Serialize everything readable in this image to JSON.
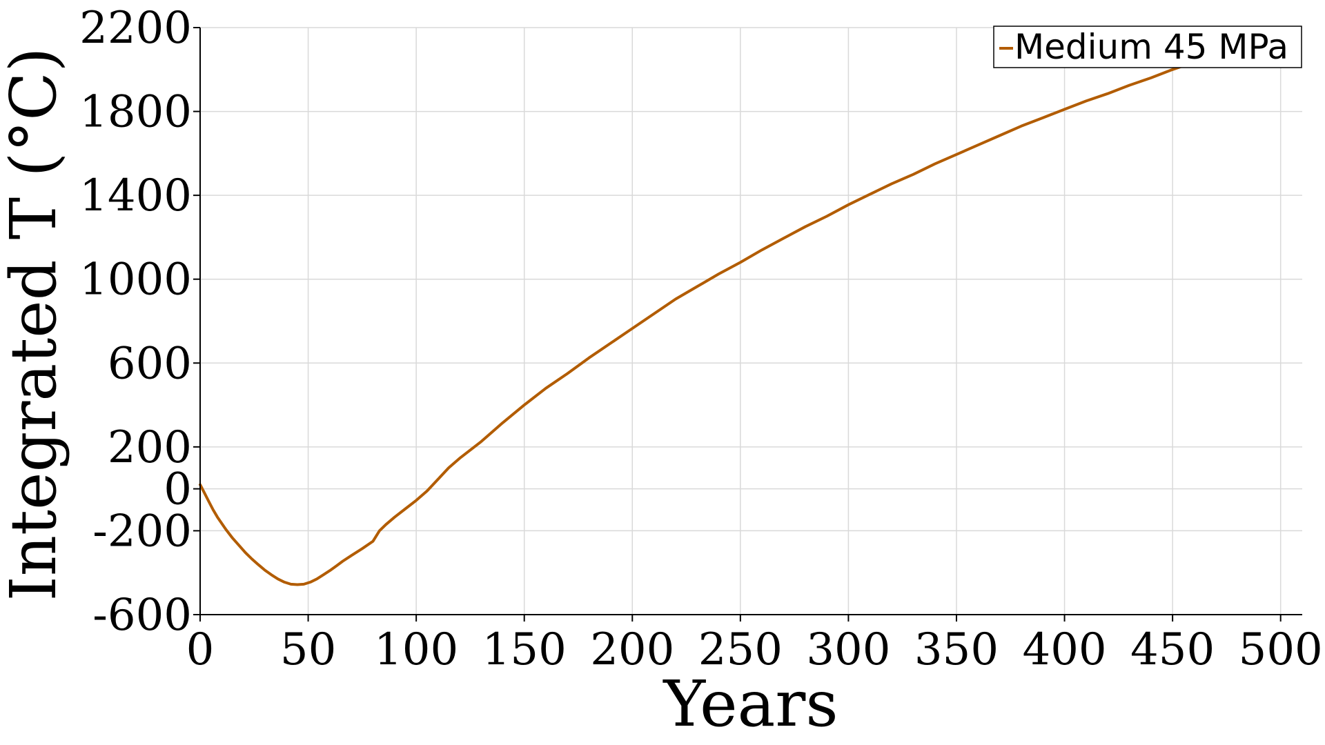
{
  "chart_data": {
    "type": "line",
    "xlabel": "Years",
    "ylabel": "Integrated T (°C)",
    "xlim": [
      0,
      510
    ],
    "ylim": [
      -600,
      2200
    ],
    "xticks": [
      0,
      50,
      100,
      150,
      200,
      250,
      300,
      350,
      400,
      450,
      500
    ],
    "yticks": [
      -600,
      -200,
      0,
      200,
      600,
      1000,
      1400,
      1800,
      2200
    ],
    "grid": true,
    "legend": "top-right",
    "colors": {
      "series": "#b25c00"
    },
    "series": [
      {
        "name": "Medium 45 MPa",
        "x": [
          0,
          2,
          4,
          6,
          8,
          10,
          12,
          15,
          18,
          21,
          24,
          27,
          30,
          33,
          36,
          39,
          42,
          45,
          48,
          51,
          54,
          57,
          60,
          63,
          66,
          70,
          75,
          80,
          83,
          86,
          90,
          95,
          100,
          105,
          110,
          115,
          120,
          130,
          140,
          150,
          160,
          170,
          180,
          190,
          200,
          210,
          220,
          230,
          240,
          250,
          260,
          270,
          280,
          290,
          300,
          310,
          320,
          330,
          340,
          350,
          360,
          370,
          380,
          390,
          400,
          410,
          420,
          430,
          440,
          450,
          460,
          470,
          480
        ],
        "y": [
          20,
          -20,
          -60,
          -100,
          -135,
          -165,
          -195,
          -235,
          -270,
          -305,
          -335,
          -362,
          -388,
          -410,
          -430,
          -445,
          -455,
          -457,
          -455,
          -445,
          -430,
          -410,
          -390,
          -368,
          -345,
          -318,
          -285,
          -250,
          -200,
          -170,
          -135,
          -95,
          -55,
          -10,
          45,
          100,
          145,
          225,
          315,
          400,
          480,
          550,
          625,
          695,
          765,
          835,
          905,
          965,
          1025,
          1080,
          1140,
          1195,
          1250,
          1300,
          1355,
          1405,
          1455,
          1500,
          1550,
          1595,
          1640,
          1685,
          1730,
          1770,
          1810,
          1850,
          1885,
          1925,
          1960,
          2000,
          2035,
          2070,
          2100
        ]
      }
    ]
  }
}
